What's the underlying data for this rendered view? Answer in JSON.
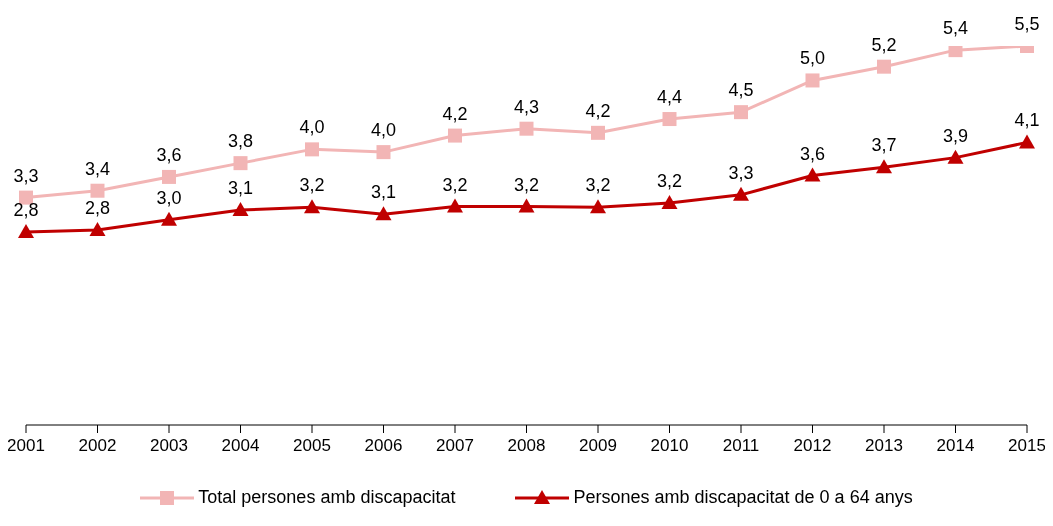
{
  "chart_data": {
    "type": "line",
    "categories": [
      "2001",
      "2002",
      "2003",
      "2004",
      "2005",
      "2006",
      "2007",
      "2008",
      "2009",
      "2010",
      "2011",
      "2012",
      "2013",
      "2014",
      "2015"
    ],
    "series": [
      {
        "name": "Total persones amb discapacitat",
        "color": "#f2b5b5",
        "marker": "square",
        "values": [
          3.3,
          3.4,
          3.6,
          3.8,
          4.0,
          3.96,
          4.2,
          4.3,
          4.24,
          4.44,
          4.54,
          5.0,
          5.2,
          5.44,
          5.5
        ],
        "value_labels": [
          "3,3",
          "3,4",
          "3,6",
          "3,8",
          "4,0",
          "4,0",
          "4,2",
          "4,3",
          "4,2",
          "4,4",
          "4,5",
          "5,0",
          "5,2",
          "5,4",
          "5,5"
        ]
      },
      {
        "name": "Persones amb discapacitat de 0 a 64 anys",
        "color": "#c00000",
        "marker": "triangle",
        "values": [
          2.8,
          2.83,
          2.98,
          3.12,
          3.16,
          3.06,
          3.17,
          3.17,
          3.16,
          3.22,
          3.34,
          3.62,
          3.74,
          3.88,
          4.1
        ],
        "value_labels": [
          "2,8",
          "2,8",
          "3,0",
          "3,1",
          "3,2",
          "3,1",
          "3,2",
          "3,2",
          "3,2",
          "3,2",
          "3,3",
          "3,6",
          "3,7",
          "3,9",
          "4,1"
        ]
      }
    ],
    "legend": "bottom",
    "tick_labels": "x"
  }
}
